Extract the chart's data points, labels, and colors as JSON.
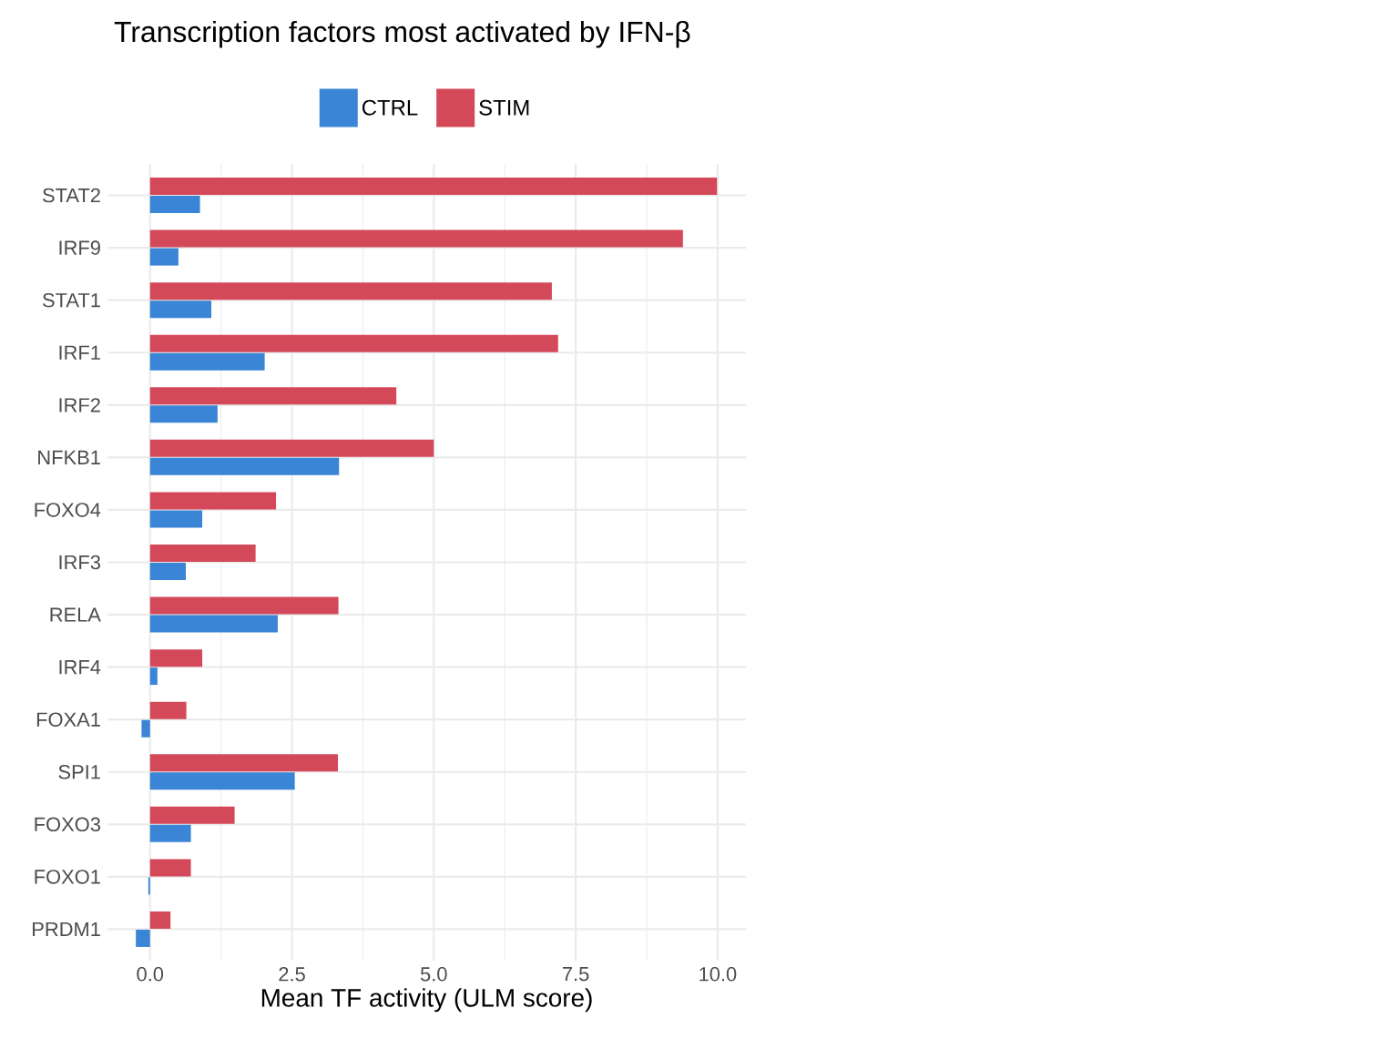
{
  "chart_data": {
    "type": "bar",
    "orientation": "horizontal",
    "title": "Transcription factors most activated by IFN-β",
    "xlabel": "Mean TF activity (ULM score)",
    "categories": [
      "STAT2",
      "IRF9",
      "STAT1",
      "IRF1",
      "IRF2",
      "NFKB1",
      "FOXO4",
      "IRF3",
      "RELA",
      "IRF4",
      "FOXA1",
      "SPI1",
      "FOXO3",
      "FOXO1",
      "PRDM1"
    ],
    "series": [
      {
        "name": "CTRL",
        "color": "#3a85d5",
        "values": [
          0.88,
          0.5,
          1.08,
          2.02,
          1.19,
          3.33,
          0.92,
          0.63,
          2.25,
          0.13,
          -0.15,
          2.55,
          0.72,
          -0.03,
          -0.25
        ]
      },
      {
        "name": "STIM",
        "color": "#d4495a",
        "values": [
          9.99,
          9.39,
          7.08,
          7.19,
          4.34,
          5.0,
          2.22,
          1.86,
          3.32,
          0.92,
          0.64,
          3.31,
          1.49,
          0.72,
          0.36
        ]
      }
    ],
    "xlim": [
      -0.75,
      10.5
    ],
    "xticks": [
      {
        "value": 0,
        "label": "0.0"
      },
      {
        "value": 2.5,
        "label": "2.5"
      },
      {
        "value": 5,
        "label": "5.0"
      },
      {
        "value": 7.5,
        "label": "7.5"
      },
      {
        "value": 10,
        "label": "10.0"
      }
    ],
    "grid": true,
    "legend": "top"
  }
}
